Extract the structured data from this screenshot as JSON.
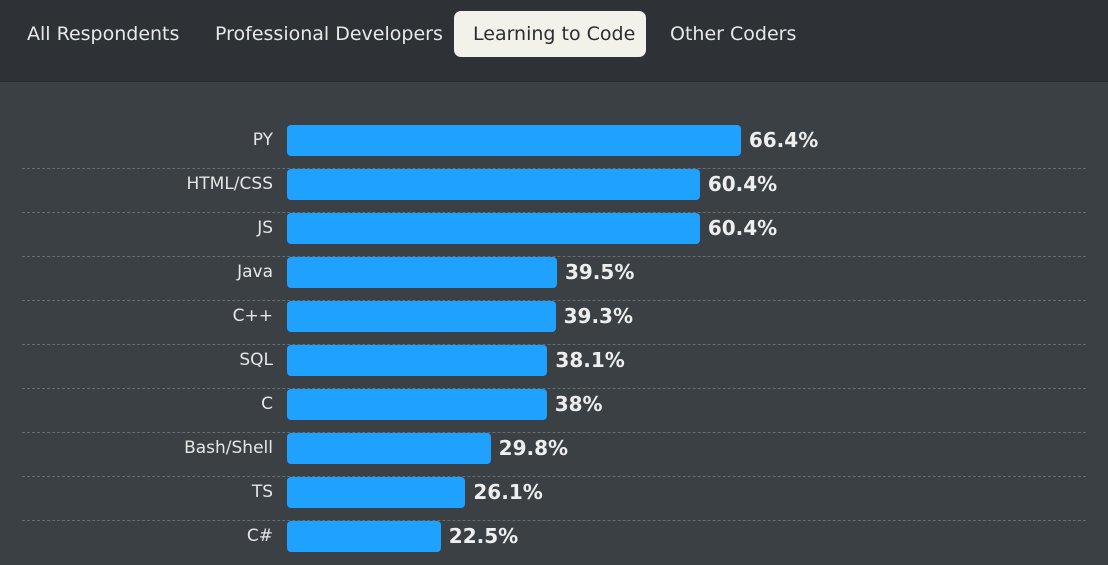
{
  "tabs": [
    {
      "label": "All Respondents",
      "active": false
    },
    {
      "label": "Professional Developers",
      "active": false
    },
    {
      "label": "Learning to Code",
      "active": true
    },
    {
      "label": "Other Coders",
      "active": false
    }
  ],
  "colors": {
    "bar": "#1ea1ff",
    "background": "#3b4044",
    "tabbar": "#2e3236",
    "active_tab": "#f2f1ea"
  },
  "chart_data": {
    "type": "bar",
    "orientation": "horizontal",
    "categories": [
      "PY",
      "HTML/CSS",
      "JS",
      "Java",
      "C++",
      "SQL",
      "C",
      "Bash/Shell",
      "TS",
      "C#"
    ],
    "values": [
      66.4,
      60.4,
      60.4,
      39.5,
      39.3,
      38.1,
      38,
      29.8,
      26.1,
      22.5
    ],
    "value_labels": [
      "66.4%",
      "60.4%",
      "60.4%",
      "39.5%",
      "39.3%",
      "38.1%",
      "38%",
      "29.8%",
      "26.1%",
      "22.5%"
    ],
    "xlim": [
      0,
      100
    ],
    "unit": "%",
    "grid": false
  }
}
